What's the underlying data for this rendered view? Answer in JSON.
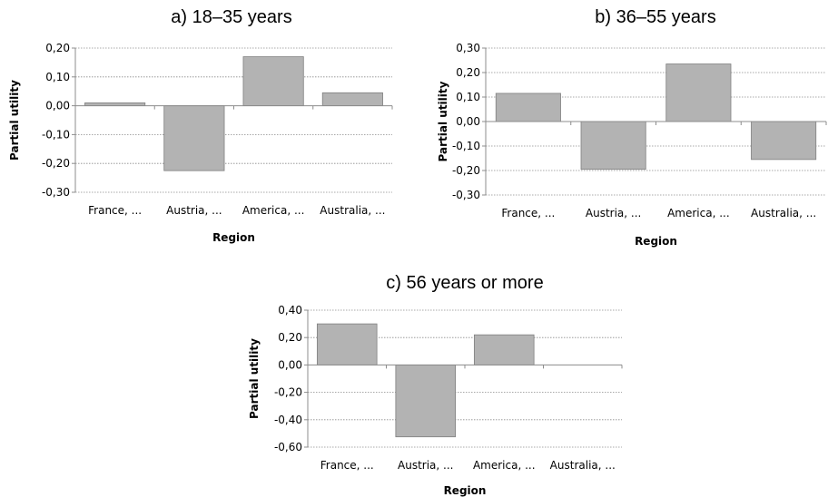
{
  "chart_data": [
    {
      "type": "bar",
      "title": "a) 18–35 years",
      "xlabel": "Region",
      "ylabel": "Partial utility",
      "categories": [
        "France, ...",
        "Austria, ...",
        "America, ...",
        "Australia, ..."
      ],
      "values": [
        0.01,
        -0.225,
        0.17,
        0.045
      ],
      "ylim": [
        -0.3,
        0.2
      ],
      "yticks": [
        0.2,
        0.1,
        0.0,
        -0.1,
        -0.2,
        -0.3
      ],
      "ytick_labels": [
        "0,20",
        "0,10",
        "0,00",
        "-0,10",
        "-0,20",
        "-0,30"
      ],
      "grid": true,
      "bar_color": "#b3b3b3"
    },
    {
      "type": "bar",
      "title": "b) 36–55 years",
      "xlabel": "Region",
      "ylabel": "Partial utility",
      "categories": [
        "France, ...",
        "Austria, ...",
        "America, ...",
        "Australia, ..."
      ],
      "values": [
        0.115,
        -0.195,
        0.235,
        -0.155
      ],
      "ylim": [
        -0.3,
        0.3
      ],
      "yticks": [
        0.3,
        0.2,
        0.1,
        0.0,
        -0.1,
        -0.2,
        -0.3
      ],
      "ytick_labels": [
        "0,30",
        "0,20",
        "0,10",
        "0,00",
        "-0,10",
        "-0,20",
        "-0,30"
      ],
      "grid": true,
      "bar_color": "#b3b3b3"
    },
    {
      "type": "bar",
      "title": "c) 56 years or more",
      "xlabel": "Region",
      "ylabel": "Partial utility",
      "categories": [
        "France, ...",
        "Austria, ...",
        "America, ...",
        "Australia, ..."
      ],
      "values": [
        0.3,
        -0.525,
        0.22,
        0.0
      ],
      "ylim": [
        -0.6,
        0.4
      ],
      "yticks": [
        0.4,
        0.2,
        0.0,
        -0.2,
        -0.4,
        -0.6
      ],
      "ytick_labels": [
        "0,40",
        "0,20",
        "0,00",
        "-0,20",
        "-0,40",
        "-0,60"
      ],
      "grid": true,
      "bar_color": "#b3b3b3"
    }
  ]
}
